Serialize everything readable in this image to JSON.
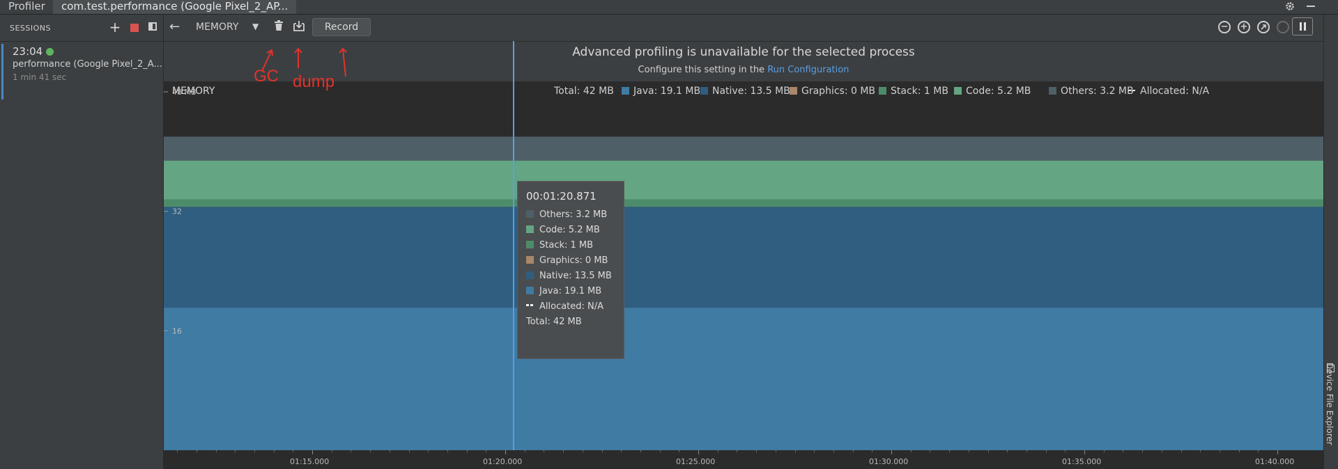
{
  "tabs": {
    "profiler": "Profiler",
    "session": "com.test.performance (Google Pixel_2_AP..."
  },
  "window_icons": {
    "settings": "gear-icon",
    "minimize": "minimize-icon"
  },
  "sessions": {
    "header": "SESSIONS",
    "add_icon": "+",
    "item": {
      "time": "23:04",
      "name": "performance (Google Pixel_2_A...",
      "duration": "1 min 41 sec"
    }
  },
  "toolbar": {
    "back_icon": "←",
    "profiler_select": "MEMORY",
    "dropdown_icon": "▼",
    "record_label": "Record",
    "zoom_out": "−",
    "zoom_in": "+"
  },
  "banner": {
    "title": "Advanced profiling is unavailable for the selected process",
    "sub_prefix": "Configure this setting in the ",
    "sub_link": "Run Configuration"
  },
  "annotations": {
    "gc": "GC",
    "dump": "dump"
  },
  "side_panel": {
    "label": "Device File Explorer"
  },
  "colors": {
    "java": "#3f7ba3",
    "native": "#2f5e80",
    "graphics": "#a9876a",
    "stack": "#4d8c6a",
    "code": "#64a583",
    "others": "#4f5f68",
    "cursor": "#5a9ee6",
    "annotation": "#e0332b"
  },
  "chart_data": {
    "type": "area",
    "title": "MEMORY",
    "ylabel": "",
    "yticks": [
      "48 MB",
      "32",
      "16"
    ],
    "ylim": [
      0,
      48
    ],
    "x_ticks": [
      "01:15.000",
      "01:20.000",
      "01:25.000",
      "01:30.000",
      "01:35.000",
      "01:40.000"
    ],
    "legend": [
      {
        "name": "Total: 42 MB"
      },
      {
        "name": "Java: 19.1 MB",
        "color": "#3f7ba3"
      },
      {
        "name": "Native: 13.5 MB",
        "color": "#2f5e80"
      },
      {
        "name": "Graphics: 0 MB",
        "color": "#a9876a"
      },
      {
        "name": "Stack: 1 MB",
        "color": "#4d8c6a"
      },
      {
        "name": "Code: 5.2 MB",
        "color": "#64a583"
      },
      {
        "name": "Others: 3.2 MB",
        "color": "#4f5f68"
      },
      {
        "name": "Allocated: N/A",
        "dashed": true
      }
    ],
    "series": [
      {
        "name": "Java",
        "values": [
          19.1,
          19.1
        ],
        "color": "#3f7ba3"
      },
      {
        "name": "Native",
        "values": [
          13.5,
          13.5
        ],
        "color": "#2f5e80"
      },
      {
        "name": "Graphics",
        "values": [
          0,
          0
        ],
        "color": "#a9876a"
      },
      {
        "name": "Stack",
        "values": [
          1,
          1
        ],
        "color": "#4d8c6a"
      },
      {
        "name": "Code",
        "values": [
          5.2,
          5.2
        ],
        "color": "#64a583"
      },
      {
        "name": "Others",
        "values": [
          3.2,
          3.2
        ],
        "color": "#4f5f68"
      }
    ],
    "tooltip": {
      "time": "00:01:20.871",
      "rows": [
        {
          "label": "Others: 3.2 MB",
          "color": "#4f5f68"
        },
        {
          "label": "Code: 5.2 MB",
          "color": "#64a583"
        },
        {
          "label": "Stack: 1 MB",
          "color": "#4d8c6a"
        },
        {
          "label": "Graphics: 0 MB",
          "color": "#a9876a"
        },
        {
          "label": "Native: 13.5 MB",
          "color": "#2f5e80"
        },
        {
          "label": "Java: 19.1 MB",
          "color": "#3f7ba3"
        },
        {
          "label": "Allocated: N/A",
          "dashed": true
        },
        {
          "label": "Total: 42 MB"
        }
      ]
    }
  }
}
